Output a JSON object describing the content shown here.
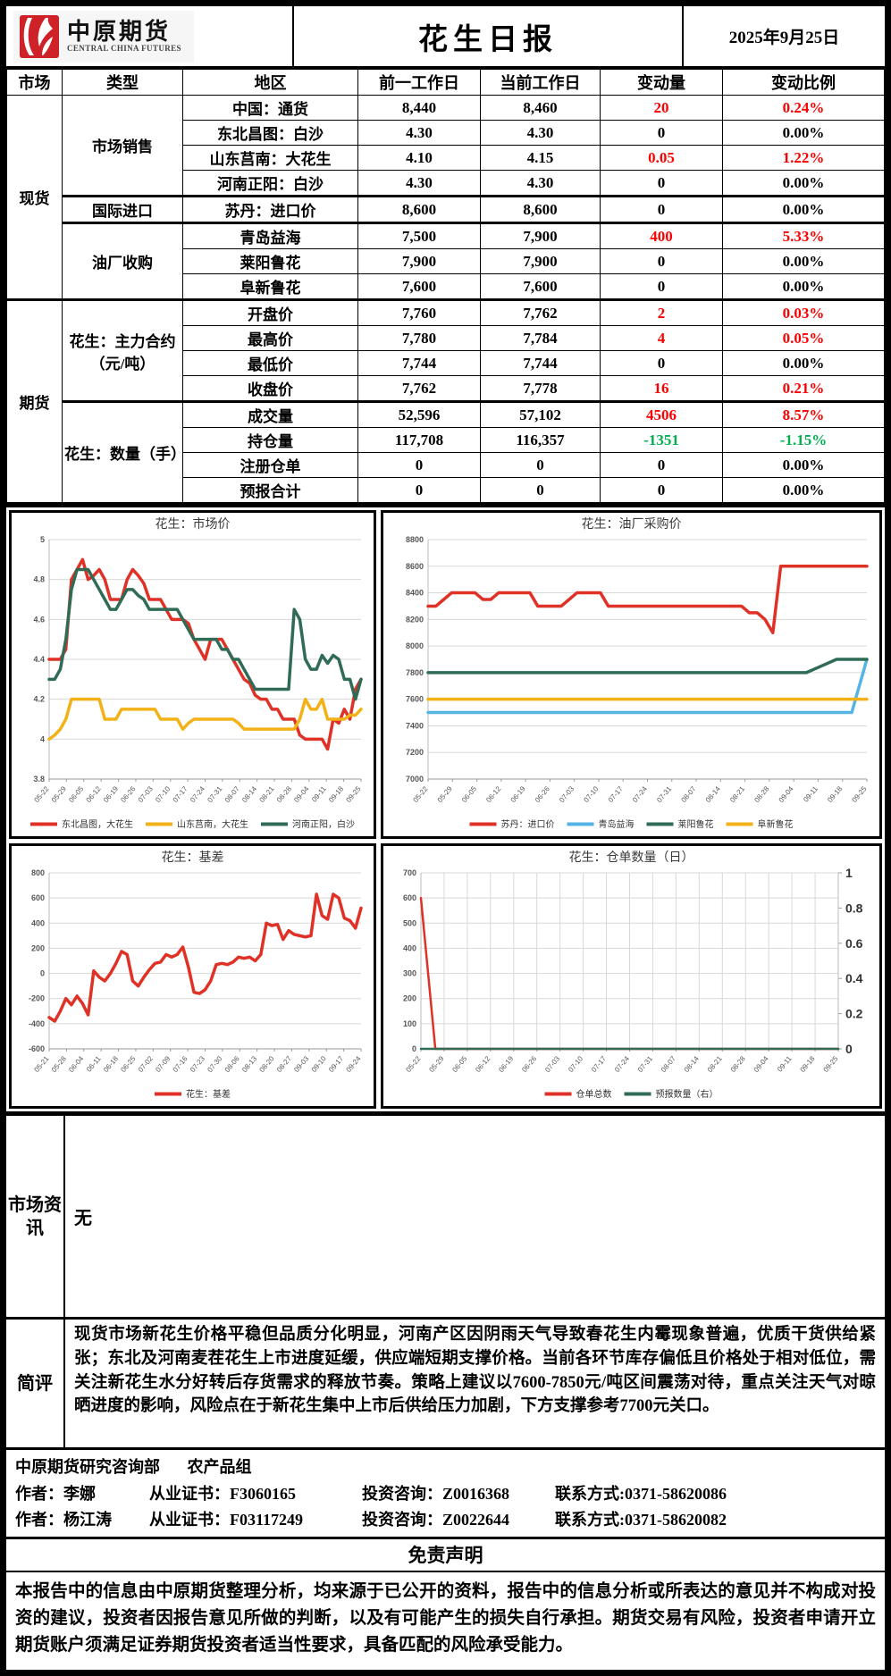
{
  "header": {
    "logo_cn": "中原期货",
    "logo_en": "CENTRAL CHINA FUTURES",
    "title": "花生日报",
    "date": "2025年9月25日"
  },
  "table": {
    "headers": [
      "市场",
      "类型",
      "地区",
      "前一工作日",
      "当前工作日",
      "变动量",
      "变动比例"
    ],
    "colors": {
      "red": "#fe0000",
      "green": "#00b050",
      "black": "#000000"
    },
    "rows": [
      {
        "market": {
          "label": "现货",
          "rowspan": 8
        },
        "type": {
          "label": "市场销售",
          "rowspan": 4
        },
        "region": "中国：通货",
        "prev": "8,440",
        "curr": "8,460",
        "change": "20",
        "change_color": "red",
        "pct": "0.24%",
        "pct_color": "red"
      },
      {
        "region": "东北昌图：白沙",
        "prev": "4.30",
        "curr": "4.30",
        "change": "0",
        "change_color": "black",
        "pct": "0.00%",
        "pct_color": "black"
      },
      {
        "region": "山东莒南：大花生",
        "prev": "4.10",
        "curr": "4.15",
        "change": "0.05",
        "change_color": "red",
        "pct": "1.22%",
        "pct_color": "red"
      },
      {
        "region": "河南正阳：白沙",
        "prev": "4.30",
        "curr": "4.30",
        "change": "0",
        "change_color": "black",
        "pct": "0.00%",
        "pct_color": "black"
      },
      {
        "type": {
          "label": "国际进口",
          "rowspan": 1
        },
        "thick": true,
        "region": "苏丹：进口价",
        "prev": "8,600",
        "curr": "8,600",
        "change": "0",
        "change_color": "black",
        "pct": "0.00%",
        "pct_color": "black"
      },
      {
        "type": {
          "label": "油厂收购",
          "rowspan": 3
        },
        "thick": true,
        "region": "青岛益海",
        "prev": "7,500",
        "curr": "7,900",
        "change": "400",
        "change_color": "red",
        "pct": "5.33%",
        "pct_color": "red"
      },
      {
        "region": "莱阳鲁花",
        "prev": "7,900",
        "curr": "7,900",
        "change": "0",
        "change_color": "black",
        "pct": "0.00%",
        "pct_color": "black"
      },
      {
        "region": "阜新鲁花",
        "prev": "7,600",
        "curr": "7,600",
        "change": "0",
        "change_color": "black",
        "pct": "0.00%",
        "pct_color": "black"
      },
      {
        "market": {
          "label": "期货",
          "rowspan": 8
        },
        "type": {
          "label": "花生：主力合约（元/吨）",
          "rowspan": 4
        },
        "thick": true,
        "region": "开盘价",
        "prev": "7,760",
        "curr": "7,762",
        "change": "2",
        "change_color": "red",
        "pct": "0.03%",
        "pct_color": "red"
      },
      {
        "region": "最高价",
        "prev": "7,780",
        "curr": "7,784",
        "change": "4",
        "change_color": "red",
        "pct": "0.05%",
        "pct_color": "red"
      },
      {
        "region": "最低价",
        "prev": "7,744",
        "curr": "7,744",
        "change": "0",
        "change_color": "black",
        "pct": "0.00%",
        "pct_color": "black"
      },
      {
        "region": "收盘价",
        "prev": "7,762",
        "curr": "7,778",
        "change": "16",
        "change_color": "red",
        "pct": "0.21%",
        "pct_color": "red"
      },
      {
        "type": {
          "label": "花生：数量（手）",
          "rowspan": 4
        },
        "thick": true,
        "region": "成交量",
        "prev": "52,596",
        "curr": "57,102",
        "change": "4506",
        "change_color": "red",
        "pct": "8.57%",
        "pct_color": "red"
      },
      {
        "region": "持仓量",
        "prev": "117,708",
        "curr": "116,357",
        "change": "-1351",
        "change_color": "green",
        "pct": "-1.15%",
        "pct_color": "green"
      },
      {
        "region": "注册仓单",
        "prev": "0",
        "curr": "0",
        "change": "0",
        "change_color": "black",
        "pct": "0.00%",
        "pct_color": "black"
      },
      {
        "region": "预报合计",
        "prev": "0",
        "curr": "0",
        "change": "0",
        "change_color": "black",
        "pct": "0.00%",
        "pct_color": "black"
      }
    ]
  },
  "chart_data": [
    {
      "type": "line",
      "title": "花生：市场价",
      "x_labels": [
        "05-22",
        "05-29",
        "06-05",
        "06-12",
        "06-19",
        "06-26",
        "07-03",
        "07-10",
        "07-17",
        "07-24",
        "07-31",
        "08-07",
        "08-14",
        "08-21",
        "08-28",
        "09-04",
        "09-11",
        "09-18",
        "09-25"
      ],
      "ylim": [
        3.8,
        5
      ],
      "yticks": [
        3.8,
        4,
        4.2,
        4.4,
        4.6,
        4.8,
        5
      ],
      "grid": "horizontal",
      "legend_position": "bottom",
      "series": [
        {
          "name": "东北昌图，大花生",
          "color": "#e03127",
          "values": [
            4.4,
            4.4,
            4.4,
            4.45,
            4.8,
            4.85,
            4.9,
            4.8,
            4.82,
            4.85,
            4.8,
            4.7,
            4.7,
            4.7,
            4.8,
            4.85,
            4.82,
            4.78,
            4.7,
            4.7,
            4.7,
            4.65,
            4.6,
            4.6,
            4.6,
            4.58,
            4.5,
            4.45,
            4.4,
            4.5,
            4.5,
            4.5,
            4.45,
            4.4,
            4.35,
            4.3,
            4.28,
            4.22,
            4.2,
            4.2,
            4.15,
            4.15,
            4.1,
            4.1,
            4.1,
            4.02,
            4.0,
            4.0,
            4.0,
            4.0,
            3.95,
            4.1,
            4.08,
            4.15,
            4.1,
            4.25,
            4.3
          ]
        },
        {
          "name": "山东莒南，大花生",
          "color": "#f2b217",
          "values": [
            4.0,
            4.02,
            4.05,
            4.1,
            4.2,
            4.2,
            4.2,
            4.2,
            4.2,
            4.2,
            4.1,
            4.1,
            4.1,
            4.15,
            4.15,
            4.15,
            4.15,
            4.15,
            4.15,
            4.15,
            4.1,
            4.1,
            4.1,
            4.1,
            4.05,
            4.08,
            4.1,
            4.1,
            4.1,
            4.1,
            4.1,
            4.1,
            4.1,
            4.1,
            4.08,
            4.05,
            4.05,
            4.05,
            4.05,
            4.05,
            4.05,
            4.05,
            4.05,
            4.05,
            4.05,
            4.1,
            4.2,
            4.15,
            4.15,
            4.2,
            4.1,
            4.1,
            4.1,
            4.1,
            4.12,
            4.12,
            4.15
          ]
        },
        {
          "name": "河南正阳，白沙",
          "color": "#2f6b55",
          "values": [
            4.3,
            4.3,
            4.35,
            4.5,
            4.75,
            4.85,
            4.85,
            4.85,
            4.8,
            4.75,
            4.7,
            4.65,
            4.65,
            4.7,
            4.75,
            4.75,
            4.72,
            4.7,
            4.65,
            4.65,
            4.65,
            4.65,
            4.65,
            4.65,
            4.6,
            4.55,
            4.5,
            4.5,
            4.5,
            4.5,
            4.5,
            4.45,
            4.45,
            4.4,
            4.4,
            4.35,
            4.3,
            4.25,
            4.25,
            4.25,
            4.25,
            4.25,
            4.25,
            4.25,
            4.65,
            4.6,
            4.4,
            4.35,
            4.35,
            4.42,
            4.38,
            4.42,
            4.4,
            4.3,
            4.3,
            4.2,
            4.3
          ]
        }
      ]
    },
    {
      "type": "line",
      "title": "花生：油厂采购价",
      "x_labels": [
        "05-22",
        "05-29",
        "06-05",
        "06-12",
        "06-19",
        "06-26",
        "07-03",
        "07-10",
        "07-17",
        "07-24",
        "07-31",
        "08-07",
        "08-14",
        "08-21",
        "08-28",
        "09-04",
        "09-11",
        "09-18",
        "09-25"
      ],
      "ylim": [
        7000,
        8800
      ],
      "yticks": [
        7000,
        7200,
        7400,
        7600,
        7800,
        8000,
        8200,
        8400,
        8600,
        8800
      ],
      "grid": "horizontal",
      "legend_position": "bottom",
      "series": [
        {
          "name": "苏丹：进口价",
          "color": "#e03127",
          "values": [
            8300,
            8300,
            8350,
            8400,
            8400,
            8400,
            8400,
            8350,
            8350,
            8400,
            8400,
            8400,
            8400,
            8400,
            8300,
            8300,
            8300,
            8300,
            8350,
            8400,
            8400,
            8400,
            8400,
            8300,
            8300,
            8300,
            8300,
            8300,
            8300,
            8300,
            8300,
            8300,
            8300,
            8300,
            8300,
            8300,
            8300,
            8300,
            8300,
            8300,
            8300,
            8250,
            8250,
            8200,
            8100,
            8600,
            8600,
            8600,
            8600,
            8600,
            8600,
            8600,
            8600,
            8600,
            8600,
            8600,
            8600
          ]
        },
        {
          "name": "青岛益海",
          "color": "#56b3e6",
          "values": [
            7500,
            7500,
            7500,
            7500,
            7500,
            7500,
            7500,
            7500,
            7500,
            7500,
            7500,
            7500,
            7500,
            7500,
            7500,
            7500,
            7500,
            7500,
            7500,
            7500,
            7500,
            7500,
            7500,
            7500,
            7500,
            7500,
            7500,
            7500,
            7500,
            7900
          ]
        },
        {
          "name": "莱阳鲁花",
          "color": "#2f6b55",
          "values": [
            7800,
            7800,
            7800,
            7800,
            7800,
            7800,
            7800,
            7800,
            7800,
            7800,
            7800,
            7800,
            7800,
            7800,
            7800,
            7800,
            7800,
            7800,
            7800,
            7800,
            7800,
            7800,
            7800,
            7800,
            7800,
            7800,
            7850,
            7900,
            7900,
            7900
          ]
        },
        {
          "name": "阜新鲁花",
          "color": "#f2b217",
          "values": [
            7600,
            7600
          ]
        }
      ]
    },
    {
      "type": "line",
      "title": "花生：基差",
      "x_labels": [
        "05-21",
        "05-28",
        "06-04",
        "06-11",
        "06-18",
        "06-25",
        "07-02",
        "07-09",
        "07-16",
        "07-23",
        "07-30",
        "08-06",
        "08-13",
        "08-20",
        "08-27",
        "09-03",
        "09-10",
        "09-17",
        "09-24"
      ],
      "ylim": [
        -600,
        800
      ],
      "yticks": [
        -600,
        -400,
        -200,
        0,
        200,
        400,
        600,
        800
      ],
      "grid": "horizontal",
      "legend_position": "bottom",
      "series": [
        {
          "name": "花生：基差",
          "color": "#e03127",
          "values": [
            -350,
            -380,
            -300,
            -200,
            -250,
            -180,
            -240,
            -330,
            20,
            -30,
            -60,
            0,
            80,
            175,
            150,
            -60,
            -100,
            -30,
            30,
            80,
            90,
            150,
            130,
            150,
            210,
            50,
            -150,
            -160,
            -130,
            -60,
            70,
            80,
            70,
            90,
            130,
            120,
            130,
            100,
            150,
            400,
            380,
            390,
            270,
            340,
            310,
            300,
            290,
            300,
            630,
            460,
            430,
            630,
            600,
            440,
            420,
            360,
            520
          ]
        }
      ]
    },
    {
      "type": "line",
      "title": "花生：仓单数量（日）",
      "x_labels": [
        "05-22",
        "05-29",
        "06-05",
        "06-12",
        "06-19",
        "06-26",
        "07-03",
        "07-10",
        "07-17",
        "07-24",
        "07-31",
        "08-07",
        "08-14",
        "08-21",
        "08-28",
        "09-04",
        "09-11",
        "09-18",
        "09-25"
      ],
      "ylim": [
        0,
        700
      ],
      "yticks": [
        0,
        100,
        200,
        300,
        400,
        500,
        600,
        700
      ],
      "right_axis": {
        "lim": [
          0,
          1
        ],
        "ticks": [
          0,
          0.2,
          0.4,
          0.6,
          0.8,
          1
        ]
      },
      "grid": "both",
      "legend_position": "bottom",
      "series": [
        {
          "name": "仓单总数",
          "color": "#e03127",
          "width": 2.5,
          "values": [
            600,
            0,
            0,
            0,
            0,
            0,
            0,
            0,
            0,
            0,
            0,
            0,
            0,
            0,
            0,
            0,
            0,
            0,
            0,
            0,
            0,
            0,
            0,
            0,
            0,
            0,
            0,
            0,
            0,
            0
          ]
        },
        {
          "name": "预报数量（右）",
          "color": "#2f6b55",
          "width": 2.5,
          "axis": "right",
          "values": [
            0,
            0
          ]
        }
      ]
    }
  ],
  "sections": {
    "market_info_label": "市场资讯",
    "market_info_content": "无",
    "comment_label": "简评",
    "comment_text": "现货市场新花生价格平稳但品质分化明显，河南产区因阴雨天气导致春花生内霉现象普遍，优质干货供给紧张；东北及河南麦茬花生上市进度延缓，供应端短期支撑价格。当前各环节库存偏低且价格处于相对低位，需关注新花生水分好转后存货需求的释放节奏。策略上建议以7600-7850元/吨区间震荡对待，重点关注天气对晾晒进度的影响，风险点在于新花生集中上市后供给压力加剧，下方支撑参考7700元关口。",
    "dept": "中原期货研究咨询部",
    "group": "农产品组",
    "authors": [
      {
        "author": "作者：李娜",
        "cert": "从业证书：F3060165",
        "advisory": "投资咨询：Z0016368",
        "contact": "联系方式:0371-58620086"
      },
      {
        "author": "作者：杨江涛",
        "cert": "从业证书：F03117249",
        "advisory": "投资咨询：Z0022644",
        "contact": "联系方式:0371-58620082"
      }
    ],
    "disclaimer_title": "免责声明",
    "disclaimer_text": "本报告中的信息由中原期货整理分析，均来源于已公开的资料，报告中的信息分析或所表达的意见并不构成对投资的建议，投资者因报告意见所做的判断，以及有可能产生的损失自行承担。期货交易有风险，投资者申请开立期货账户须满足证券期货投资者适当性要求，具备匹配的风险承受能力。"
  }
}
